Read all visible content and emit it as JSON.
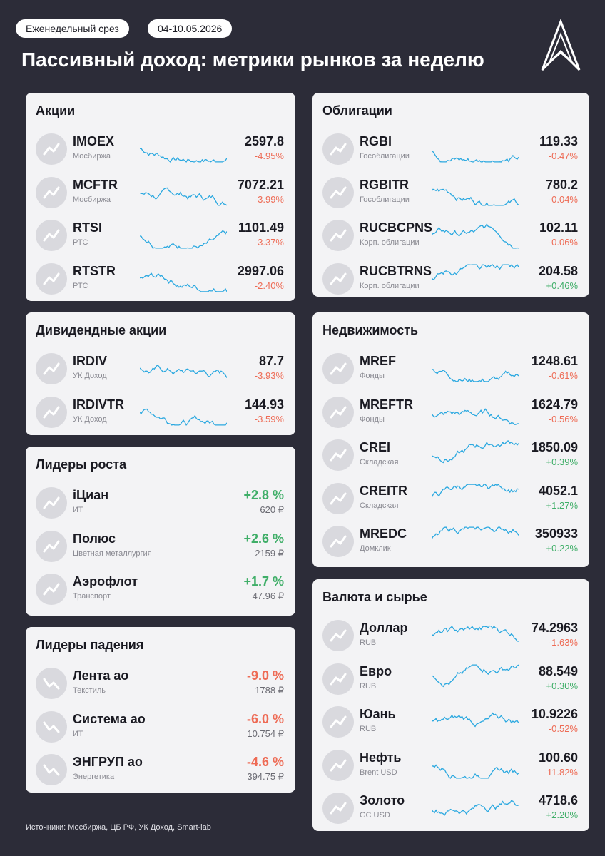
{
  "header": {
    "tag": "Еженедельный срез",
    "date": "04-10.05.2026",
    "title": "Пассивный доход: метрики рынков за неделю"
  },
  "left": [
    {
      "title": "Акции",
      "kind": "index",
      "items": [
        {
          "ticker": "IMOEX",
          "sub": "Мосбиржа",
          "value": "2597.8",
          "change": "-4.95%"
        },
        {
          "ticker": "MCFTR",
          "sub": "Мосбиржа",
          "value": "7072.21",
          "change": "-3.99%"
        },
        {
          "ticker": "RTSI",
          "sub": "РТС",
          "value": "1101.49",
          "change": "-3.37%"
        },
        {
          "ticker": "RTSTR",
          "sub": "РТС",
          "value": "2997.06",
          "change": "-2.40%"
        }
      ]
    },
    {
      "title": "Дивидендные акции",
      "kind": "index",
      "items": [
        {
          "ticker": "IRDIV",
          "sub": "УК Доход",
          "value": "87.7",
          "change": "-3.93%"
        },
        {
          "ticker": "IRDIVTR",
          "sub": "УК Доход",
          "value": "144.93",
          "change": "-3.59%"
        }
      ]
    },
    {
      "title": "Лидеры роста",
      "kind": "leader",
      "items": [
        {
          "ticker": "iЦиан",
          "sub": "ИТ",
          "change": "+2.8 %",
          "value": "620 ₽"
        },
        {
          "ticker": "Полюс",
          "sub": "Цветная металлургия",
          "change": "+2.6 %",
          "value": "2159 ₽"
        },
        {
          "ticker": "Аэрофлот",
          "sub": "Транспорт",
          "change": "+1.7 %",
          "value": "47.96 ₽"
        }
      ]
    },
    {
      "title": "Лидеры падения",
      "kind": "leader",
      "items": [
        {
          "ticker": "Лента ао",
          "sub": "Текстиль",
          "change": "-9.0 %",
          "value": "1788 ₽"
        },
        {
          "ticker": "Система ао",
          "sub": "ИТ",
          "change": "-6.0 %",
          "value": "10.754 ₽"
        },
        {
          "ticker": "ЭНГРУП ао",
          "sub": "Энергетика",
          "change": "-4.6 %",
          "value": "394.75 ₽"
        }
      ]
    }
  ],
  "right": [
    {
      "title": "Облигации",
      "kind": "index",
      "items": [
        {
          "ticker": "RGBI",
          "sub": "Гособлигации",
          "value": "119.33",
          "change": "-0.47%"
        },
        {
          "ticker": "RGBITR",
          "sub": "Гособлигации",
          "value": "780.2",
          "change": "-0.04%"
        },
        {
          "ticker": "RUCBCPNS",
          "sub": "Корп. облигации",
          "value": "102.11",
          "change": "-0.06%"
        },
        {
          "ticker": "RUCBTRNS",
          "sub": "Корп. облигации",
          "value": "204.58",
          "change": "+0.46%"
        }
      ]
    },
    {
      "title": "Недвижимость",
      "kind": "index",
      "items": [
        {
          "ticker": "MREF",
          "sub": "Фонды",
          "value": "1248.61",
          "change": "-0.61%"
        },
        {
          "ticker": "MREFTR",
          "sub": "Фонды",
          "value": "1624.79",
          "change": "-0.56%"
        },
        {
          "ticker": "CREI",
          "sub": "Складская",
          "value": "1850.09",
          "change": "+0.39%"
        },
        {
          "ticker": "CREITR",
          "sub": "Складская",
          "value": "4052.1",
          "change": "+1.27%"
        },
        {
          "ticker": "MREDC",
          "sub": "Домклик",
          "value": "350933",
          "change": "+0.22%"
        }
      ]
    },
    {
      "title": "Валюта и сырье",
      "kind": "index",
      "items": [
        {
          "ticker": "Доллар",
          "sub": "RUB",
          "value": "74.2963",
          "change": "-1.63%"
        },
        {
          "ticker": "Евро",
          "sub": "RUB",
          "value": "88.549",
          "change": "+0.30%"
        },
        {
          "ticker": "Юань",
          "sub": "RUB",
          "value": "10.9226",
          "change": "-0.52%"
        },
        {
          "ticker": "Нефть",
          "sub": "Brent USD",
          "value": "100.60",
          "change": "-11.82%"
        },
        {
          "ticker": "Золото",
          "sub": "GC USD",
          "value": "4718.6",
          "change": "+2.20%"
        }
      ]
    }
  ],
  "footer": "Источники: Мосбиржа, ЦБ РФ, УК Доход, Smart-lab"
}
